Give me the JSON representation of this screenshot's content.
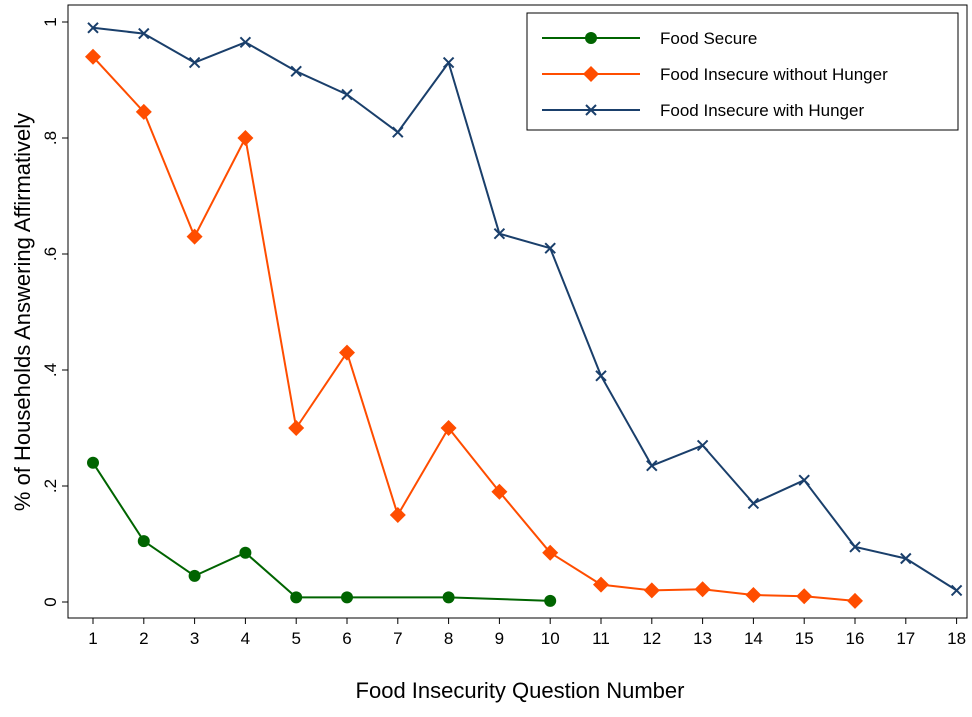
{
  "chart_data": {
    "type": "line",
    "title": "",
    "xlabel": "Food Insecurity Question Number",
    "ylabel": "% of Households Answering Affirmatively",
    "xlim": [
      1,
      18
    ],
    "ylim": [
      0,
      1
    ],
    "x_ticks": [
      1,
      2,
      3,
      4,
      5,
      6,
      7,
      8,
      9,
      10,
      11,
      12,
      13,
      14,
      15,
      16,
      17,
      18
    ],
    "y_ticks": [
      0,
      0.2,
      0.4,
      0.6,
      0.8,
      1
    ],
    "y_tick_labels": [
      "0",
      ".2",
      ".4",
      ".6",
      ".8",
      "1"
    ],
    "grid": false,
    "legend_position": "top-right",
    "series": [
      {
        "name": "Food Secure",
        "color": "#006400",
        "marker": "circle",
        "x": [
          1,
          2,
          3,
          4,
          5,
          6,
          8,
          10
        ],
        "y": [
          0.24,
          0.105,
          0.045,
          0.085,
          0.008,
          0.008,
          0.008,
          0.002
        ]
      },
      {
        "name": "Food Insecure without Hunger",
        "color": "#FF4D00",
        "marker": "diamond",
        "x": [
          1,
          2,
          3,
          4,
          5,
          6,
          7,
          8,
          9,
          10,
          11,
          12,
          13,
          14,
          15,
          16
        ],
        "y": [
          0.94,
          0.845,
          0.63,
          0.8,
          0.3,
          0.43,
          0.15,
          0.3,
          0.19,
          0.085,
          0.03,
          0.02,
          0.022,
          0.012,
          0.01,
          0.002
        ]
      },
      {
        "name": "Food Insecure with Hunger",
        "color": "#1A3F6B",
        "marker": "x",
        "x": [
          1,
          2,
          3,
          4,
          5,
          6,
          7,
          8,
          9,
          10,
          11,
          12,
          13,
          14,
          15,
          16,
          17,
          18
        ],
        "y": [
          0.99,
          0.98,
          0.93,
          0.965,
          0.915,
          0.875,
          0.81,
          0.93,
          0.635,
          0.61,
          0.39,
          0.235,
          0.27,
          0.17,
          0.21,
          0.095,
          0.075,
          0.02
        ]
      }
    ]
  }
}
